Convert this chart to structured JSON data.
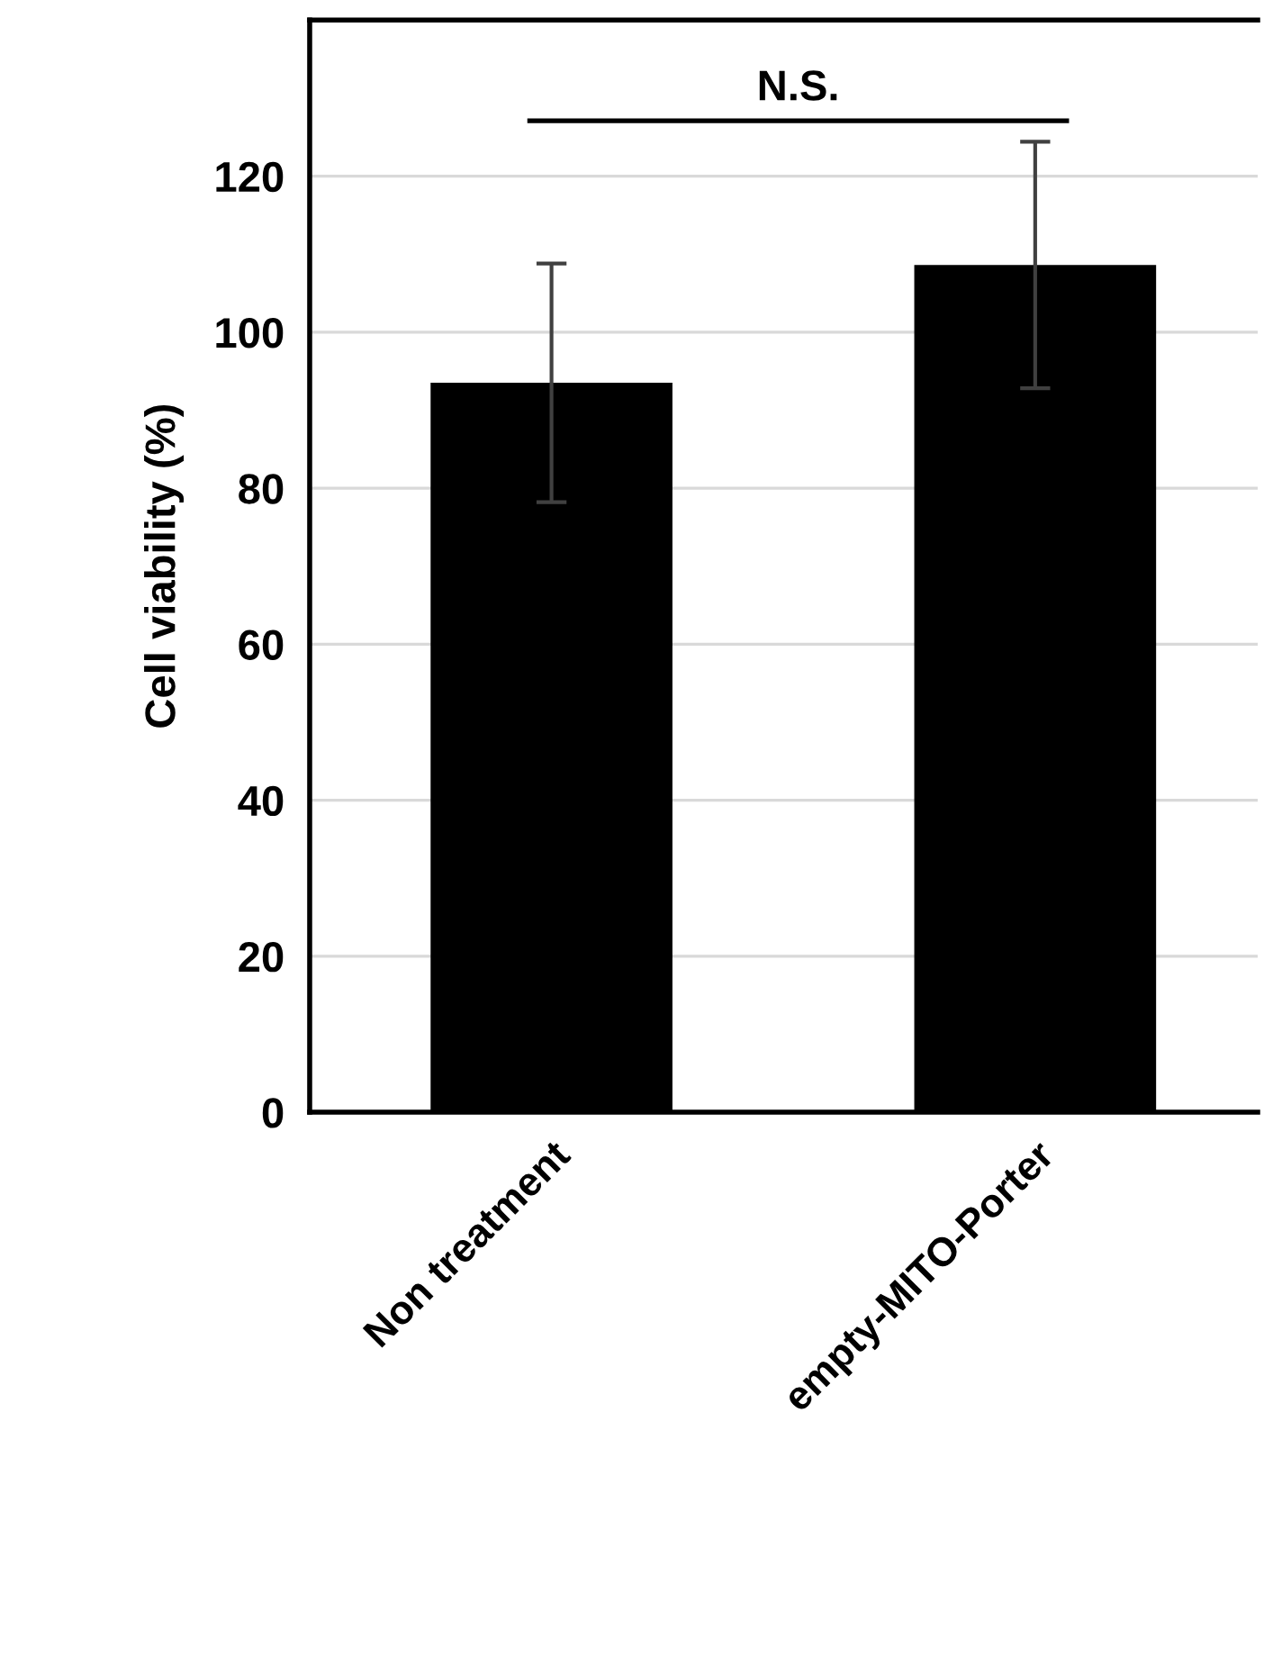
{
  "chart_data": {
    "type": "bar",
    "ylabel": "Cell viability (%)",
    "categories": [
      "Non treatment",
      "empty-MITO-Porter"
    ],
    "values": [
      93.5,
      108.6
    ],
    "errors": [
      15.3,
      15.8
    ],
    "color": "#000000",
    "ylim": [
      0,
      140
    ],
    "yticks": [
      0,
      20,
      40,
      60,
      80,
      100,
      120
    ],
    "grid": "y",
    "annotations": [
      "N.S."
    ]
  }
}
